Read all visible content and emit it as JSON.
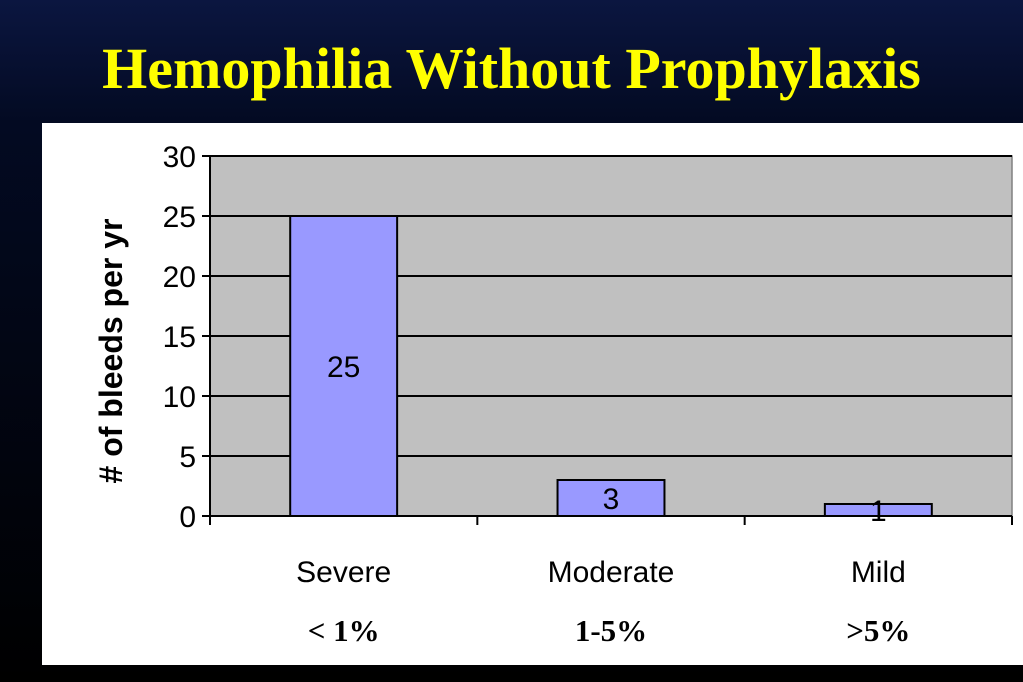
{
  "slide": {
    "title": "Hemophilia Without Prophylaxis",
    "title_color": "#ffff00",
    "background_color": "#000000"
  },
  "chart_data": {
    "type": "bar",
    "title": "",
    "ylabel": "# of bleeds per yr",
    "xlabel": "",
    "categories": [
      "Severe",
      "Moderate",
      "Mild"
    ],
    "category_sublabels": [
      "< 1%",
      "1-5%",
      ">5%"
    ],
    "values": [
      25,
      3,
      1
    ],
    "data_labels": [
      "25",
      "3",
      "1"
    ],
    "ylim": [
      0,
      30
    ],
    "yticks": [
      0,
      5,
      10,
      15,
      20,
      25,
      30
    ],
    "grid": true,
    "legend": "none",
    "bar_color": "#9999ff",
    "plot_background": "#c0c0c0"
  }
}
